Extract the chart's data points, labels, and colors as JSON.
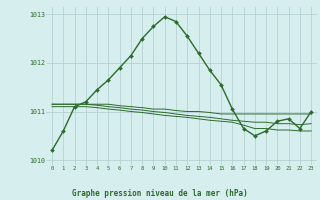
{
  "title": "Graphe pression niveau de la mer (hPa)",
  "xlabel_hours": [
    0,
    1,
    2,
    3,
    4,
    5,
    6,
    7,
    8,
    9,
    10,
    11,
    12,
    13,
    14,
    15,
    16,
    17,
    18,
    19,
    20,
    21,
    22,
    23
  ],
  "series1": {
    "values": [
      1010.2,
      1010.6,
      1011.1,
      1011.2,
      1011.45,
      1011.65,
      1011.9,
      1012.15,
      1012.5,
      1012.75,
      1012.95,
      1012.85,
      1012.55,
      1012.2,
      1011.85,
      1011.55,
      1011.05,
      1010.65,
      1010.5,
      1010.6,
      1010.8,
      1010.85,
      1010.65,
      1011.0
    ],
    "color": "#2d6a2d",
    "linewidth": 1.0,
    "marker": "D",
    "markersize": 2.0
  },
  "series2": {
    "values": [
      1011.15,
      1011.15,
      1011.15,
      1011.15,
      1011.15,
      1011.15,
      1011.12,
      1011.1,
      1011.08,
      1011.05,
      1011.05,
      1011.02,
      1011.0,
      1011.0,
      1010.98,
      1010.95,
      1010.95,
      1010.95,
      1010.95,
      1010.95,
      1010.95,
      1010.95,
      1010.95,
      1010.95
    ],
    "color": "#2d6a2d",
    "linewidth": 0.7
  },
  "series3": {
    "values": [
      1011.15,
      1011.15,
      1011.15,
      1011.15,
      1011.13,
      1011.1,
      1011.08,
      1011.05,
      1011.03,
      1011.0,
      1010.98,
      1010.95,
      1010.92,
      1010.9,
      1010.88,
      1010.85,
      1010.82,
      1010.8,
      1010.78,
      1010.78,
      1010.75,
      1010.75,
      1010.73,
      1010.75
    ],
    "color": "#2d6a2d",
    "linewidth": 0.7
  },
  "series4": {
    "values": [
      1011.1,
      1011.1,
      1011.1,
      1011.1,
      1011.08,
      1011.05,
      1011.03,
      1011.0,
      1010.98,
      1010.95,
      1010.92,
      1010.9,
      1010.88,
      1010.85,
      1010.82,
      1010.8,
      1010.78,
      1010.72,
      1010.65,
      1010.65,
      1010.62,
      1010.62,
      1010.6,
      1010.6
    ],
    "color": "#2d6a2d",
    "linewidth": 0.7
  },
  "ylim": [
    1009.9,
    1013.15
  ],
  "yticks": [
    1010,
    1011,
    1012,
    1013
  ],
  "bg_color": "#d6eeee",
  "grid_color": "#aecccc",
  "tick_color": "#2d6a2d",
  "label_color": "#2d6a2d"
}
